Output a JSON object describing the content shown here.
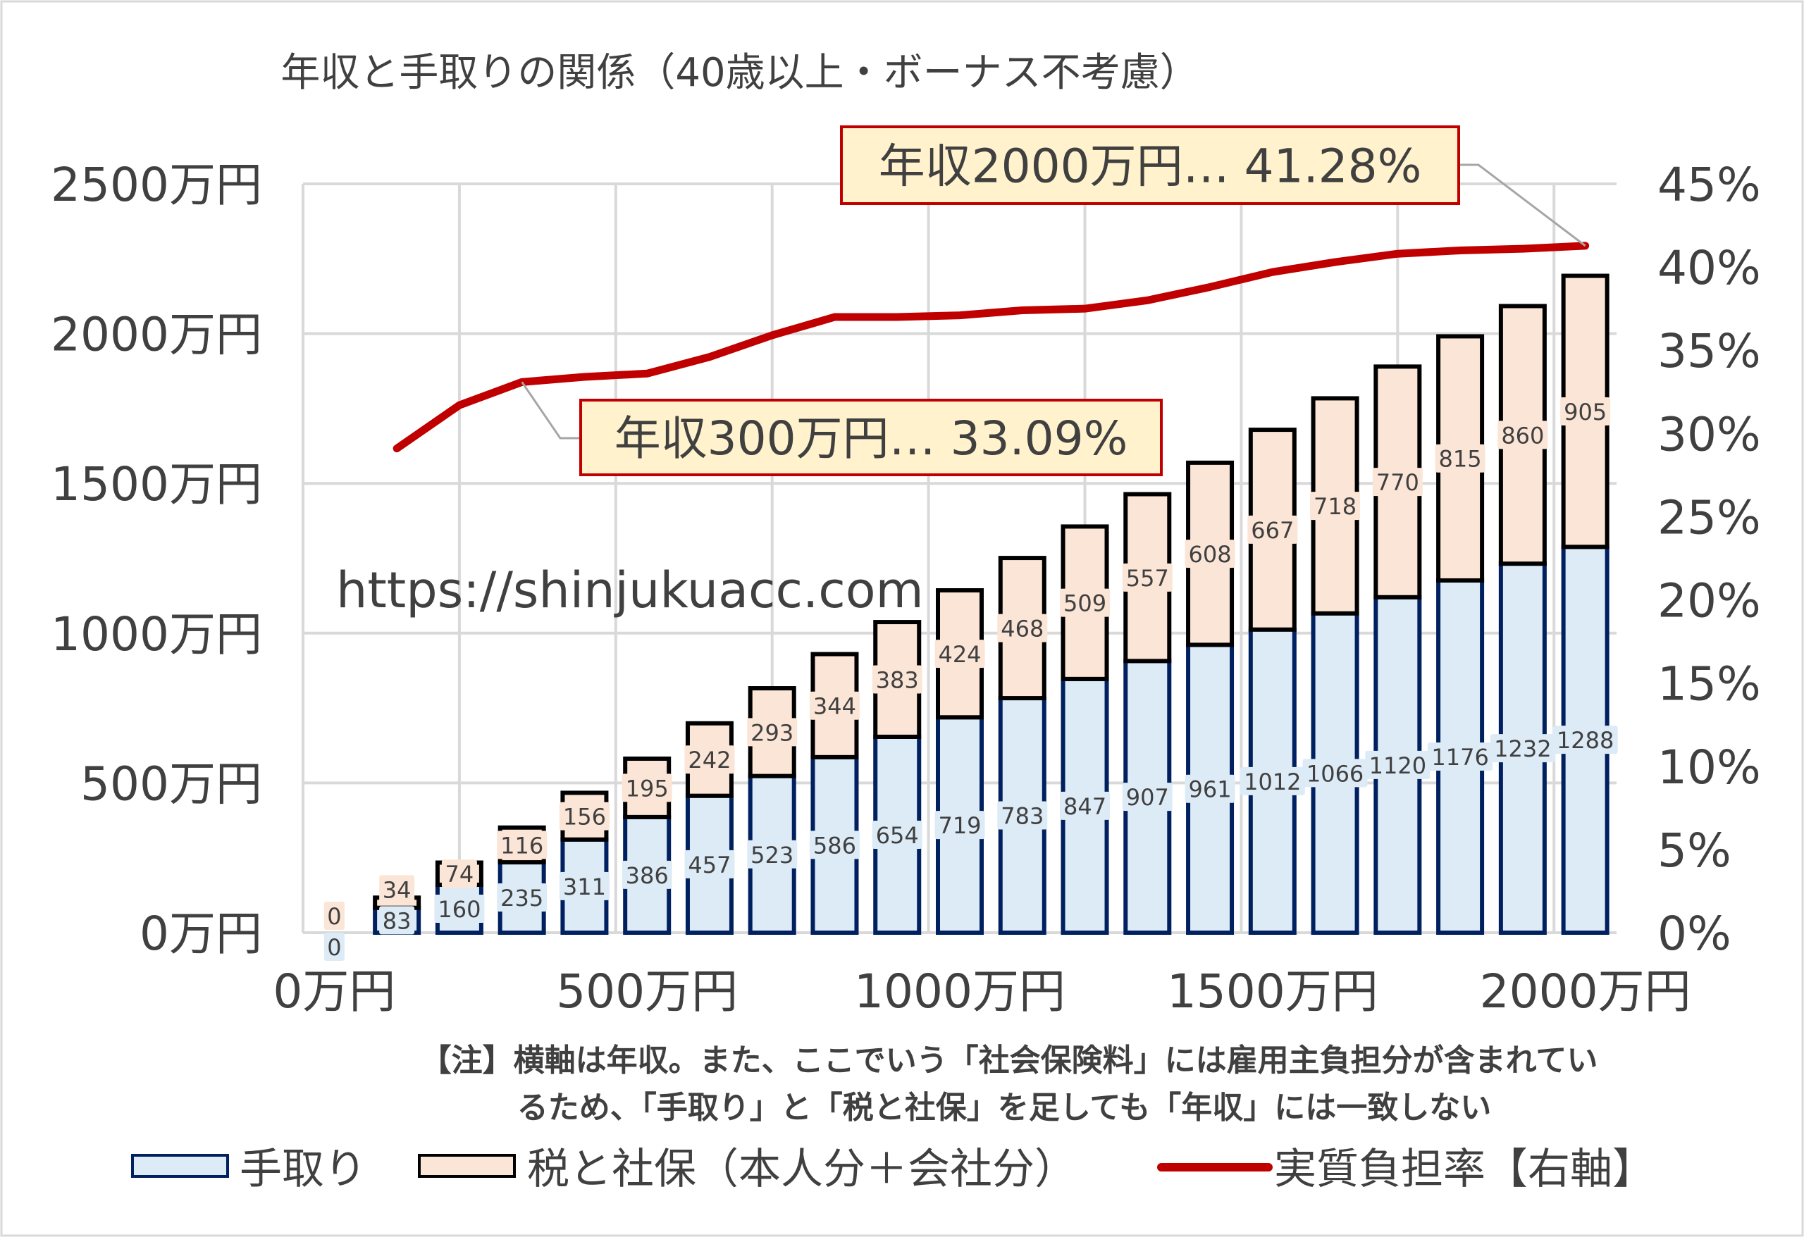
{
  "chart_data": {
    "type": "bar",
    "title": "年収と手取りの関係（40歳以上・ボーナス不考慮）",
    "x": [
      0,
      100,
      200,
      300,
      400,
      500,
      600,
      700,
      800,
      900,
      1000,
      1100,
      1200,
      1300,
      1400,
      1500,
      1600,
      1700,
      1800,
      1900,
      2000
    ],
    "x_unit": "万円",
    "xlim": [
      -50,
      2050
    ],
    "x_ticks": [
      "0万円",
      "500万円",
      "1000万円",
      "1500万円",
      "2000万円"
    ],
    "x_tick_values": [
      0,
      500,
      1000,
      1500,
      2000
    ],
    "ylim": [
      0,
      2500
    ],
    "y_ticks": [
      "0万円",
      "500万円",
      "1000万円",
      "1500万円",
      "2000万円",
      "2500万円"
    ],
    "y_tick_values": [
      0,
      500,
      1000,
      1500,
      2000,
      2500
    ],
    "y2lim": [
      0,
      45
    ],
    "y2_ticks": [
      "0%",
      "5%",
      "10%",
      "15%",
      "20%",
      "25%",
      "30%",
      "35%",
      "40%",
      "45%"
    ],
    "y2_tick_values": [
      0,
      5,
      10,
      15,
      20,
      25,
      30,
      35,
      40,
      45
    ],
    "grid": true,
    "series": [
      {
        "name": "手取り",
        "type": "stacked-bar",
        "color": "#DDEBF7",
        "stroke": "#002060",
        "values": [
          0,
          83,
          160,
          235,
          311,
          386,
          457,
          523,
          586,
          654,
          719,
          783,
          847,
          907,
          961,
          1012,
          1066,
          1120,
          1176,
          1232,
          1288
        ]
      },
      {
        "name": "税と社保（本人分＋会社分）",
        "type": "stacked-bar",
        "color": "#FBE5D6",
        "stroke": "#000000",
        "values": [
          0,
          34,
          74,
          116,
          156,
          195,
          242,
          293,
          344,
          383,
          424,
          468,
          509,
          557,
          608,
          667,
          718,
          770,
          815,
          860,
          905
        ]
      },
      {
        "name": "実質負担率【右軸】",
        "type": "line",
        "axis": "right",
        "color": "#C00000",
        "x": [
          100,
          200,
          300,
          400,
          500,
          600,
          700,
          800,
          900,
          1000,
          1100,
          1200,
          1300,
          1400,
          1500,
          1600,
          1700,
          1800,
          1900,
          2000
        ],
        "values": [
          29.1,
          31.7,
          33.09,
          33.4,
          33.6,
          34.6,
          35.9,
          37.0,
          37.0,
          37.1,
          37.4,
          37.5,
          38.0,
          38.8,
          39.7,
          40.3,
          40.8,
          41.0,
          41.1,
          41.28
        ]
      }
    ],
    "annotations": [
      {
        "text": "年収2000万円… 41.28%",
        "x": 2000,
        "y2": 41.28
      },
      {
        "text": "年収300万円… 33.09%",
        "x": 300,
        "y2": 33.09
      }
    ],
    "watermark": "https://shinjukuacc.com",
    "note_lines": [
      "【注】横軸は年収。また、ここでいう「社会保険料」には雇用主負担分が含まれてい",
      "るため、「手取り」と「税と社保」を足しても「年収」には一致しない"
    ],
    "legend_position": "bottom"
  }
}
